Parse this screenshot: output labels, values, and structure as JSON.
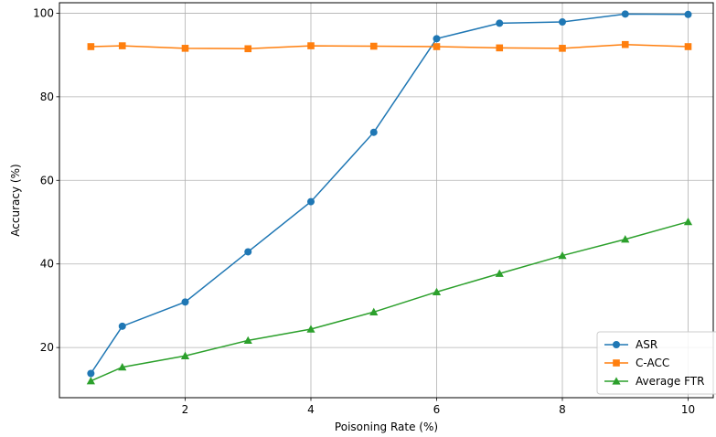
{
  "chart_data": {
    "type": "line",
    "title": "",
    "xlabel": "Poisoning Rate (%)",
    "ylabel": "Accuracy (%)",
    "xlim": [
      0.0,
      10.4
    ],
    "ylim": [
      8.0,
      102.5
    ],
    "xticks": [
      2,
      4,
      6,
      8,
      10
    ],
    "yticks": [
      20,
      40,
      60,
      80,
      100
    ],
    "grid": true,
    "legend_position": "lower-right",
    "x": [
      0.5,
      1,
      2,
      3,
      4,
      5,
      6,
      7,
      8,
      9,
      10
    ],
    "series": [
      {
        "name": "ASR",
        "color": "#1f77b4",
        "marker": "circle",
        "values": [
          13.8,
          25.1,
          30.9,
          42.9,
          54.9,
          71.5,
          93.9,
          97.6,
          97.9,
          99.8,
          99.7
        ]
      },
      {
        "name": "C-ACC",
        "color": "#ff7f0e",
        "marker": "square",
        "values": [
          92.0,
          92.2,
          91.6,
          91.5,
          92.2,
          92.1,
          92.0,
          91.7,
          91.6,
          92.5,
          92.0
        ]
      },
      {
        "name": "Average FTR",
        "color": "#2ca02c",
        "marker": "triangle",
        "values": [
          12.0,
          15.3,
          18.0,
          21.7,
          24.4,
          28.5,
          33.3,
          37.7,
          42.0,
          45.9,
          50.1
        ]
      }
    ]
  }
}
